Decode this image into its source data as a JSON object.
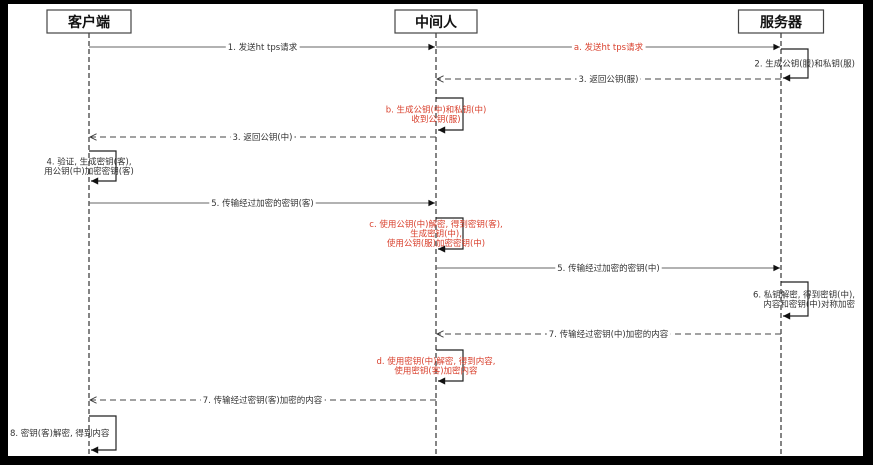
{
  "participants": [
    {
      "name": "客户端"
    },
    {
      "name": "中间人"
    },
    {
      "name": "服务器"
    }
  ],
  "colors": {
    "normal": "#333333",
    "attacker": "#d9412e",
    "background": "#ffffff",
    "frame": "#000000"
  },
  "messages": [
    {
      "type": "call",
      "from": 0,
      "to": 1,
      "label": "1. 发送ht tps请求",
      "color": "normal"
    },
    {
      "type": "call",
      "from": 1,
      "to": 2,
      "label": "a. 发送ht tps请求",
      "color": "attacker"
    },
    {
      "type": "self",
      "at": 2,
      "lines": [
        "2. 生成公钥(服)和私钥(服)"
      ],
      "color": "normal",
      "align": "right"
    },
    {
      "type": "return",
      "from": 2,
      "to": 1,
      "label": "3. 返回公钥(服)",
      "color": "normal"
    },
    {
      "type": "self",
      "at": 1,
      "lines": [
        "b. 生成公钥(中)和私钥(中)",
        "收到公钥(服)"
      ],
      "color": "attacker",
      "align": "center"
    },
    {
      "type": "return",
      "from": 1,
      "to": 0,
      "label": "3. 返回公钥(中)",
      "color": "normal"
    },
    {
      "type": "self",
      "at": 0,
      "lines": [
        "4. 验证, 生成密钥(客),",
        "用公钥(中)加密密钥(客)"
      ],
      "color": "normal",
      "align": "center"
    },
    {
      "type": "call",
      "from": 0,
      "to": 1,
      "label": "5. 传输经过加密的密钥(客)",
      "color": "normal"
    },
    {
      "type": "self",
      "at": 1,
      "lines": [
        "c. 使用公钥(中)解密, 得到密钥(客),",
        "生成密钥(中),",
        "使用公钥(服)加密密钥(中)"
      ],
      "color": "attacker",
      "align": "center"
    },
    {
      "type": "call",
      "from": 1,
      "to": 2,
      "label": "5. 传输经过加密的密钥(中)",
      "color": "normal"
    },
    {
      "type": "self",
      "at": 2,
      "lines": [
        "6. 私钥解密, 得到密钥(中),",
        "内容和密钥(中)对称加密"
      ],
      "color": "normal",
      "align": "right"
    },
    {
      "type": "return",
      "from": 2,
      "to": 1,
      "label": "7. 传输经过密钥(中)加密的内容",
      "color": "normal"
    },
    {
      "type": "self",
      "at": 1,
      "lines": [
        "d. 使用密钥(中)解密, 得到内容,",
        "使用密钥(客)加密内容"
      ],
      "color": "attacker",
      "align": "center"
    },
    {
      "type": "return",
      "from": 1,
      "to": 0,
      "label": "7. 传输经过密钥(客)加密的内容",
      "color": "normal"
    },
    {
      "type": "self",
      "at": 0,
      "lines": [
        "8. 密钥(客)解密, 得到内容"
      ],
      "color": "normal",
      "align": "left"
    }
  ]
}
